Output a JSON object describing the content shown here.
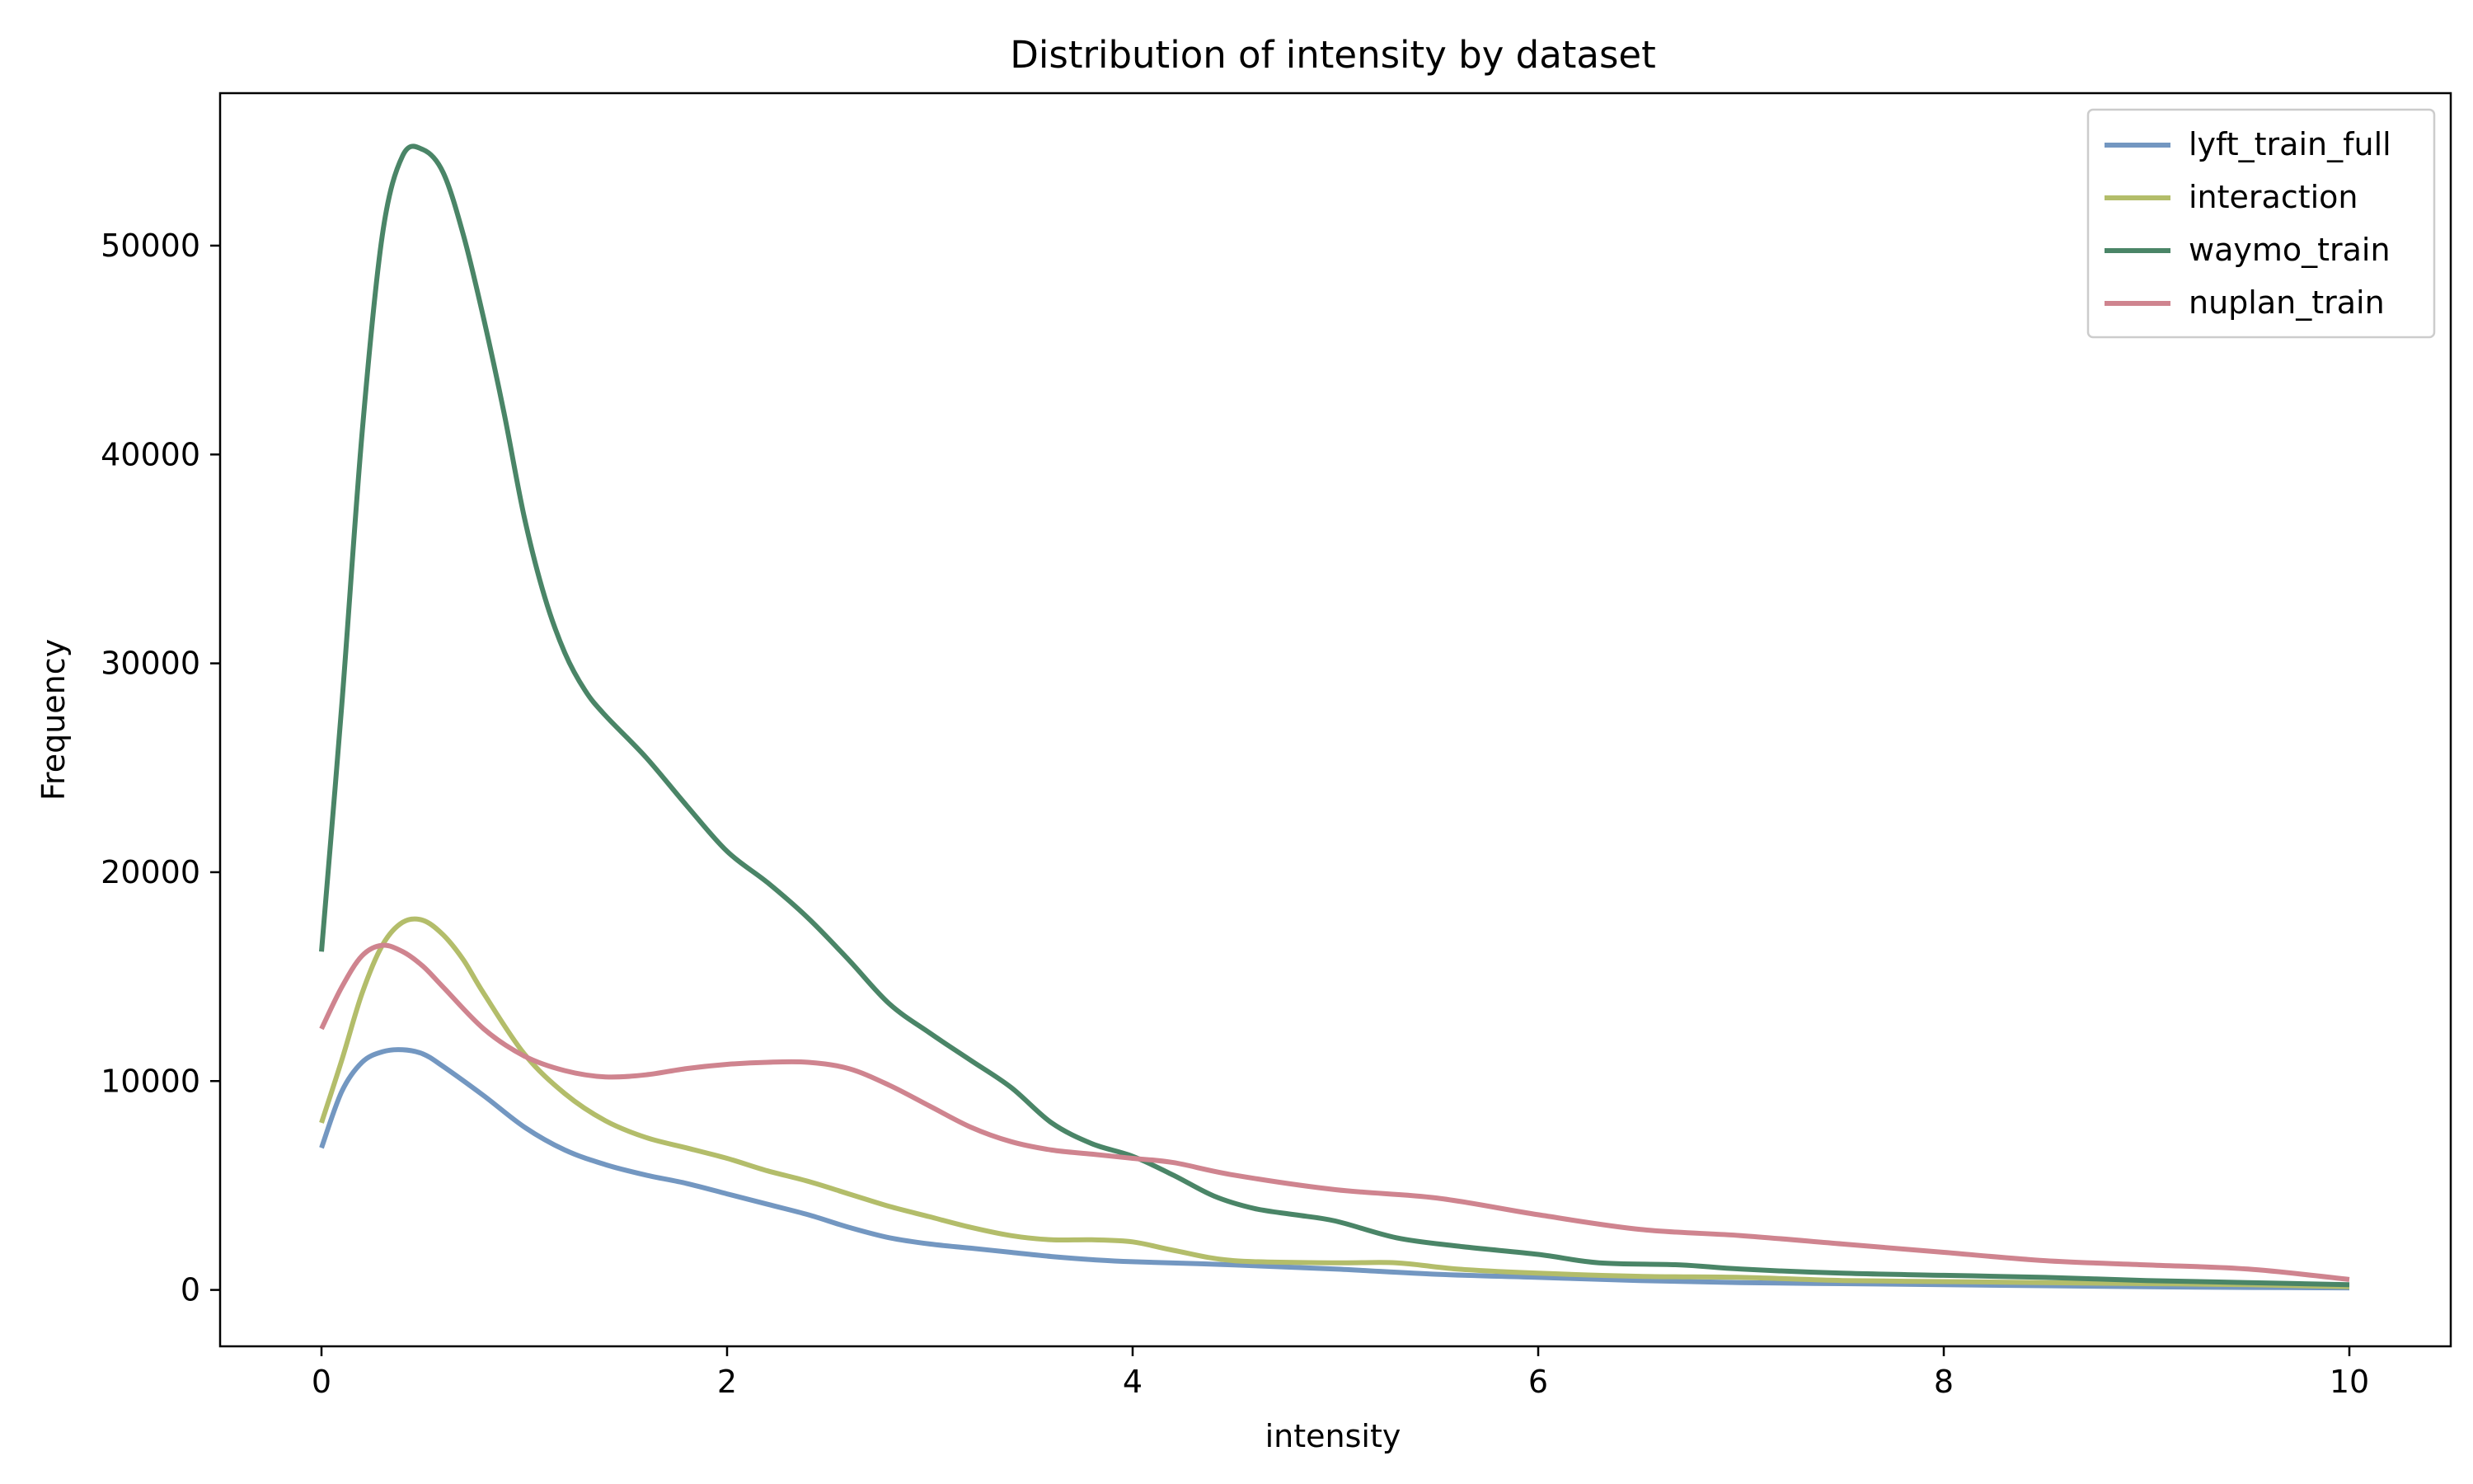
{
  "chart_data": {
    "type": "line",
    "title": "Distribution of intensity by dataset",
    "xlabel": "intensity",
    "ylabel": "Frequency",
    "xlim": [
      -0.5,
      10.5
    ],
    "ylim": [
      -2700,
      57300
    ],
    "xticks": [
      0,
      2,
      4,
      6,
      8,
      10
    ],
    "yticks": [
      0,
      10000,
      20000,
      30000,
      40000,
      50000
    ],
    "grid": false,
    "legend_position": "top-right",
    "series": [
      {
        "name": "lyft_train_full",
        "color": "#7397c1",
        "points": [
          [
            0,
            6800
          ],
          [
            0.1,
            9500
          ],
          [
            0.2,
            10900
          ],
          [
            0.3,
            11400
          ],
          [
            0.4,
            11500
          ],
          [
            0.5,
            11300
          ],
          [
            0.6,
            10700
          ],
          [
            0.8,
            9300
          ],
          [
            1.0,
            7800
          ],
          [
            1.2,
            6700
          ],
          [
            1.4,
            6000
          ],
          [
            1.6,
            5500
          ],
          [
            1.8,
            5100
          ],
          [
            2.0,
            4600
          ],
          [
            2.2,
            4100
          ],
          [
            2.4,
            3600
          ],
          [
            2.6,
            3000
          ],
          [
            2.8,
            2500
          ],
          [
            3.0,
            2200
          ],
          [
            3.2,
            2000
          ],
          [
            3.4,
            1800
          ],
          [
            3.6,
            1600
          ],
          [
            3.8,
            1450
          ],
          [
            4.0,
            1350
          ],
          [
            4.5,
            1200
          ],
          [
            5.0,
            1000
          ],
          [
            5.5,
            750
          ],
          [
            6.0,
            600
          ],
          [
            6.5,
            450
          ],
          [
            7.0,
            350
          ],
          [
            7.5,
            300
          ],
          [
            8.0,
            250
          ],
          [
            8.5,
            200
          ],
          [
            9.0,
            150
          ],
          [
            9.5,
            120
          ],
          [
            10.0,
            100
          ]
        ]
      },
      {
        "name": "interaction",
        "color": "#b3bd6a",
        "points": [
          [
            0,
            8000
          ],
          [
            0.1,
            11000
          ],
          [
            0.2,
            14200
          ],
          [
            0.3,
            16500
          ],
          [
            0.4,
            17600
          ],
          [
            0.5,
            17700
          ],
          [
            0.6,
            17000
          ],
          [
            0.7,
            15800
          ],
          [
            0.8,
            14200
          ],
          [
            1.0,
            11300
          ],
          [
            1.2,
            9400
          ],
          [
            1.4,
            8100
          ],
          [
            1.6,
            7300
          ],
          [
            1.8,
            6800
          ],
          [
            2.0,
            6300
          ],
          [
            2.2,
            5700
          ],
          [
            2.4,
            5200
          ],
          [
            2.6,
            4600
          ],
          [
            2.8,
            4000
          ],
          [
            3.0,
            3500
          ],
          [
            3.2,
            3000
          ],
          [
            3.4,
            2600
          ],
          [
            3.6,
            2400
          ],
          [
            3.8,
            2400
          ],
          [
            4.0,
            2300
          ],
          [
            4.2,
            1900
          ],
          [
            4.5,
            1400
          ],
          [
            5.0,
            1300
          ],
          [
            5.3,
            1300
          ],
          [
            5.6,
            1000
          ],
          [
            6.0,
            800
          ],
          [
            6.5,
            650
          ],
          [
            7.0,
            600
          ],
          [
            7.5,
            450
          ],
          [
            8.0,
            400
          ],
          [
            8.5,
            350
          ],
          [
            9.0,
            300
          ],
          [
            9.5,
            250
          ],
          [
            10.0,
            150
          ]
        ]
      },
      {
        "name": "waymo_train",
        "color": "#4a8567",
        "points": [
          [
            0,
            16200
          ],
          [
            0.1,
            28000
          ],
          [
            0.2,
            41000
          ],
          [
            0.3,
            50500
          ],
          [
            0.4,
            54300
          ],
          [
            0.5,
            54600
          ],
          [
            0.6,
            53500
          ],
          [
            0.7,
            50500
          ],
          [
            0.8,
            46500
          ],
          [
            0.9,
            42000
          ],
          [
            1.0,
            37000
          ],
          [
            1.1,
            33200
          ],
          [
            1.2,
            30500
          ],
          [
            1.3,
            28700
          ],
          [
            1.4,
            27500
          ],
          [
            1.6,
            25500
          ],
          [
            1.8,
            23200
          ],
          [
            2.0,
            21000
          ],
          [
            2.2,
            19500
          ],
          [
            2.4,
            17800
          ],
          [
            2.6,
            15800
          ],
          [
            2.8,
            13700
          ],
          [
            3.0,
            12300
          ],
          [
            3.2,
            11000
          ],
          [
            3.4,
            9700
          ],
          [
            3.6,
            8000
          ],
          [
            3.8,
            7000
          ],
          [
            4.0,
            6400
          ],
          [
            4.2,
            5500
          ],
          [
            4.4,
            4500
          ],
          [
            4.6,
            3900
          ],
          [
            4.8,
            3600
          ],
          [
            5.0,
            3300
          ],
          [
            5.3,
            2500
          ],
          [
            5.6,
            2100
          ],
          [
            6.0,
            1700
          ],
          [
            6.3,
            1300
          ],
          [
            6.7,
            1200
          ],
          [
            7.0,
            1000
          ],
          [
            7.5,
            800
          ],
          [
            8.0,
            700
          ],
          [
            8.5,
            600
          ],
          [
            9.0,
            450
          ],
          [
            9.5,
            350
          ],
          [
            10.0,
            250
          ]
        ]
      },
      {
        "name": "nuplan_train",
        "color": "#cf848f",
        "points": [
          [
            0,
            12500
          ],
          [
            0.1,
            14500
          ],
          [
            0.2,
            16000
          ],
          [
            0.3,
            16500
          ],
          [
            0.4,
            16200
          ],
          [
            0.5,
            15500
          ],
          [
            0.6,
            14500
          ],
          [
            0.8,
            12500
          ],
          [
            1.0,
            11200
          ],
          [
            1.2,
            10500
          ],
          [
            1.4,
            10200
          ],
          [
            1.6,
            10300
          ],
          [
            1.8,
            10600
          ],
          [
            2.0,
            10800
          ],
          [
            2.2,
            10900
          ],
          [
            2.4,
            10900
          ],
          [
            2.6,
            10600
          ],
          [
            2.8,
            9800
          ],
          [
            3.0,
            8800
          ],
          [
            3.2,
            7800
          ],
          [
            3.4,
            7100
          ],
          [
            3.6,
            6700
          ],
          [
            3.8,
            6500
          ],
          [
            4.0,
            6300
          ],
          [
            4.2,
            6100
          ],
          [
            4.5,
            5500
          ],
          [
            5.0,
            4800
          ],
          [
            5.5,
            4400
          ],
          [
            6.0,
            3600
          ],
          [
            6.5,
            2900
          ],
          [
            7.0,
            2600
          ],
          [
            7.5,
            2200
          ],
          [
            8.0,
            1800
          ],
          [
            8.5,
            1400
          ],
          [
            9.0,
            1200
          ],
          [
            9.5,
            1000
          ],
          [
            10.0,
            500
          ]
        ]
      }
    ]
  }
}
